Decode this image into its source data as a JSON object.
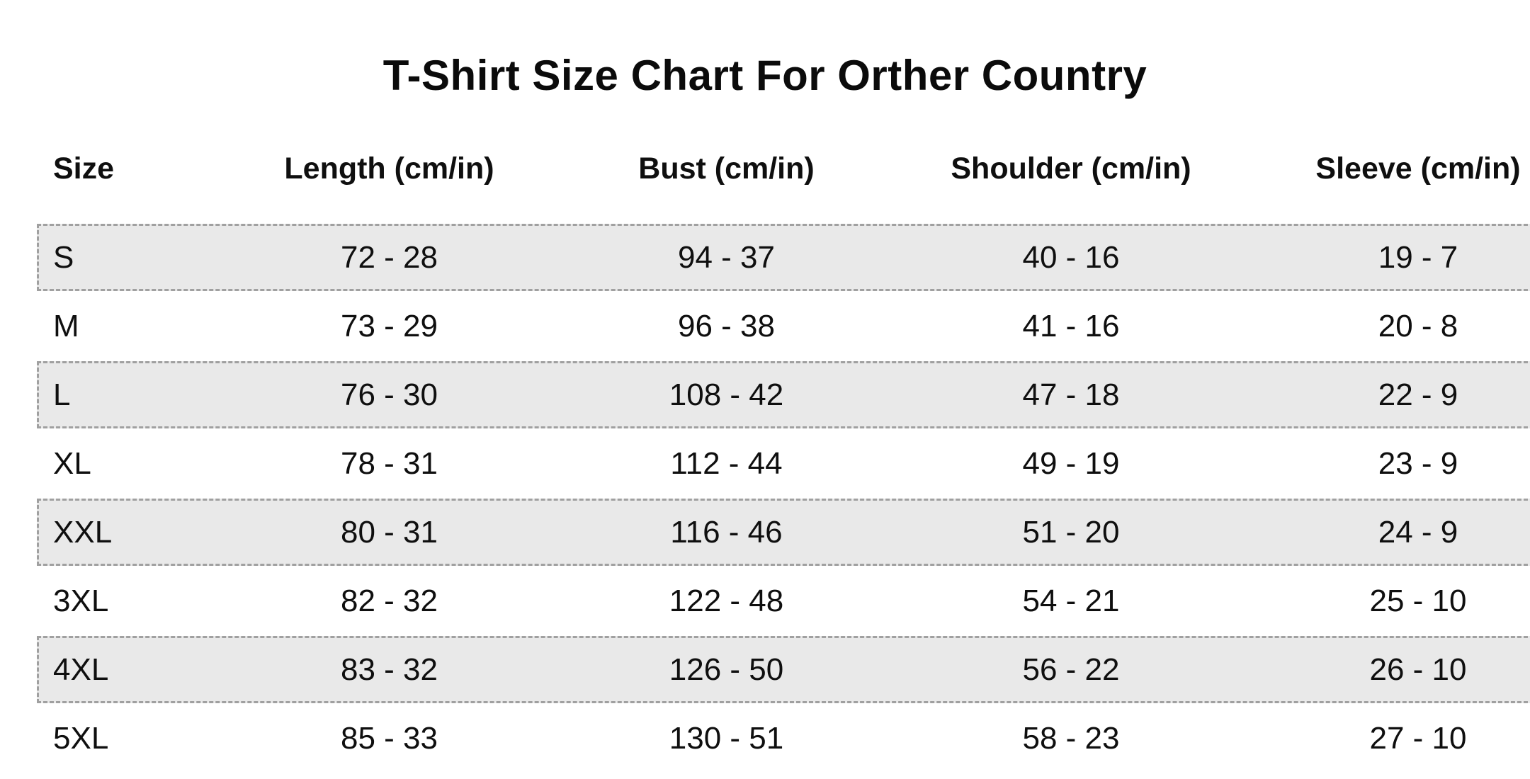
{
  "title": "T-Shirt Size Chart For Orther Country",
  "table": {
    "columns": [
      "Size",
      "Length (cm/in)",
      "Bust (cm/in)",
      "Shoulder (cm/in)",
      "Sleeve (cm/in)"
    ],
    "rows": [
      {
        "size": "S",
        "length": "72 - 28",
        "bust": "94 - 37",
        "shoulder": "40 - 16",
        "sleeve": "19 - 7",
        "striped": true
      },
      {
        "size": "M",
        "length": "73 - 29",
        "bust": "96 - 38",
        "shoulder": "41 - 16",
        "sleeve": "20 - 8",
        "striped": false
      },
      {
        "size": "L",
        "length": "76 - 30",
        "bust": "108 - 42",
        "shoulder": "47 - 18",
        "sleeve": "22 - 9",
        "striped": true
      },
      {
        "size": "XL",
        "length": "78 - 31",
        "bust": "112 - 44",
        "shoulder": "49 - 19",
        "sleeve": "23 - 9",
        "striped": false
      },
      {
        "size": "XXL",
        "length": "80 - 31",
        "bust": "116 - 46",
        "shoulder": "51 - 20",
        "sleeve": "24 - 9",
        "striped": true
      },
      {
        "size": "3XL",
        "length": "82 - 32",
        "bust": "122 - 48",
        "shoulder": "54 - 21",
        "sleeve": "25 - 10",
        "striped": false
      },
      {
        "size": "4XL",
        "length": "83 - 32",
        "bust": "126 - 50",
        "shoulder": "56 - 22",
        "sleeve": "26 - 10",
        "striped": true
      },
      {
        "size": "5XL",
        "length": "85 - 33",
        "bust": "130 - 51",
        "shoulder": "58 - 23",
        "sleeve": "27 - 10",
        "striped": false
      }
    ]
  },
  "colors": {
    "background": "#ffffff",
    "text": "#0f0f0f",
    "stripe_background": "#e9e9e9",
    "stripe_border": "#a0a0a0"
  },
  "chart_data": {
    "type": "table",
    "title": "T-Shirt Size Chart For Orther Country",
    "columns": [
      "Size",
      "Length (cm/in)",
      "Bust (cm/in)",
      "Shoulder (cm/in)",
      "Sleeve (cm/in)"
    ],
    "rows": [
      [
        "S",
        "72 - 28",
        "94 - 37",
        "40 - 16",
        "19 - 7"
      ],
      [
        "M",
        "73 - 29",
        "96 - 38",
        "41 - 16",
        "20 - 8"
      ],
      [
        "L",
        "76 - 30",
        "108 - 42",
        "47 - 18",
        "22 - 9"
      ],
      [
        "XL",
        "78 - 31",
        "112 - 44",
        "49 - 19",
        "23 - 9"
      ],
      [
        "XXL",
        "80 - 31",
        "116 - 46",
        "51 - 20",
        "24 - 9"
      ],
      [
        "3XL",
        "82 - 32",
        "122 - 48",
        "54 - 21",
        "25 - 10"
      ],
      [
        "4XL",
        "83 - 32",
        "126 - 50",
        "56 - 22",
        "26 - 10"
      ],
      [
        "5XL",
        "85 - 33",
        "130 - 51",
        "58 - 23",
        "27 - 10"
      ]
    ],
    "layout": {
      "striped_rows": [
        0,
        2,
        4,
        6
      ],
      "stripe_style": "gray dashed-border band, cut off at right edge"
    }
  }
}
